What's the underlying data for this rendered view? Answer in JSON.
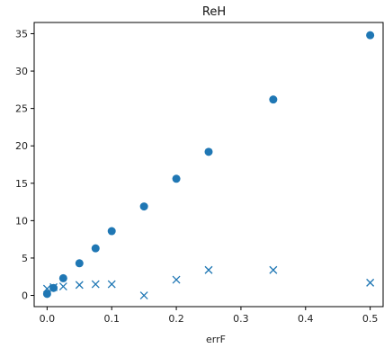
{
  "chart_data": {
    "type": "scatter",
    "title": "ReH",
    "xlabel": "errF",
    "ylabel": "",
    "xlim": [
      -0.02,
      0.52
    ],
    "ylim": [
      -1.5,
      36.5
    ],
    "xticks": [
      0.0,
      0.1,
      0.2,
      0.3,
      0.4,
      0.5
    ],
    "xtick_labels": [
      "0.0",
      "0.1",
      "0.2",
      "0.3",
      "0.4",
      "0.5"
    ],
    "yticks": [
      0,
      5,
      10,
      15,
      20,
      25,
      30,
      35
    ],
    "ytick_labels": [
      "0",
      "5",
      "10",
      "15",
      "20",
      "25",
      "30",
      "35"
    ],
    "grid": false,
    "series": [
      {
        "marker": "circle",
        "color": "#1f77b4",
        "x": [
          0.0,
          0.01,
          0.025,
          0.05,
          0.075,
          0.1,
          0.15,
          0.2,
          0.25,
          0.35,
          0.5
        ],
        "y": [
          0.2,
          1.0,
          2.3,
          4.3,
          6.3,
          8.6,
          11.9,
          15.6,
          19.2,
          26.2,
          34.8
        ]
      },
      {
        "marker": "x",
        "color": "#1f77b4",
        "x": [
          0.0,
          0.01,
          0.025,
          0.05,
          0.075,
          0.1,
          0.15,
          0.2,
          0.25,
          0.35,
          0.5
        ],
        "y": [
          0.9,
          1.1,
          1.2,
          1.4,
          1.5,
          1.5,
          0.0,
          2.1,
          3.4,
          3.4,
          1.7
        ]
      }
    ]
  }
}
